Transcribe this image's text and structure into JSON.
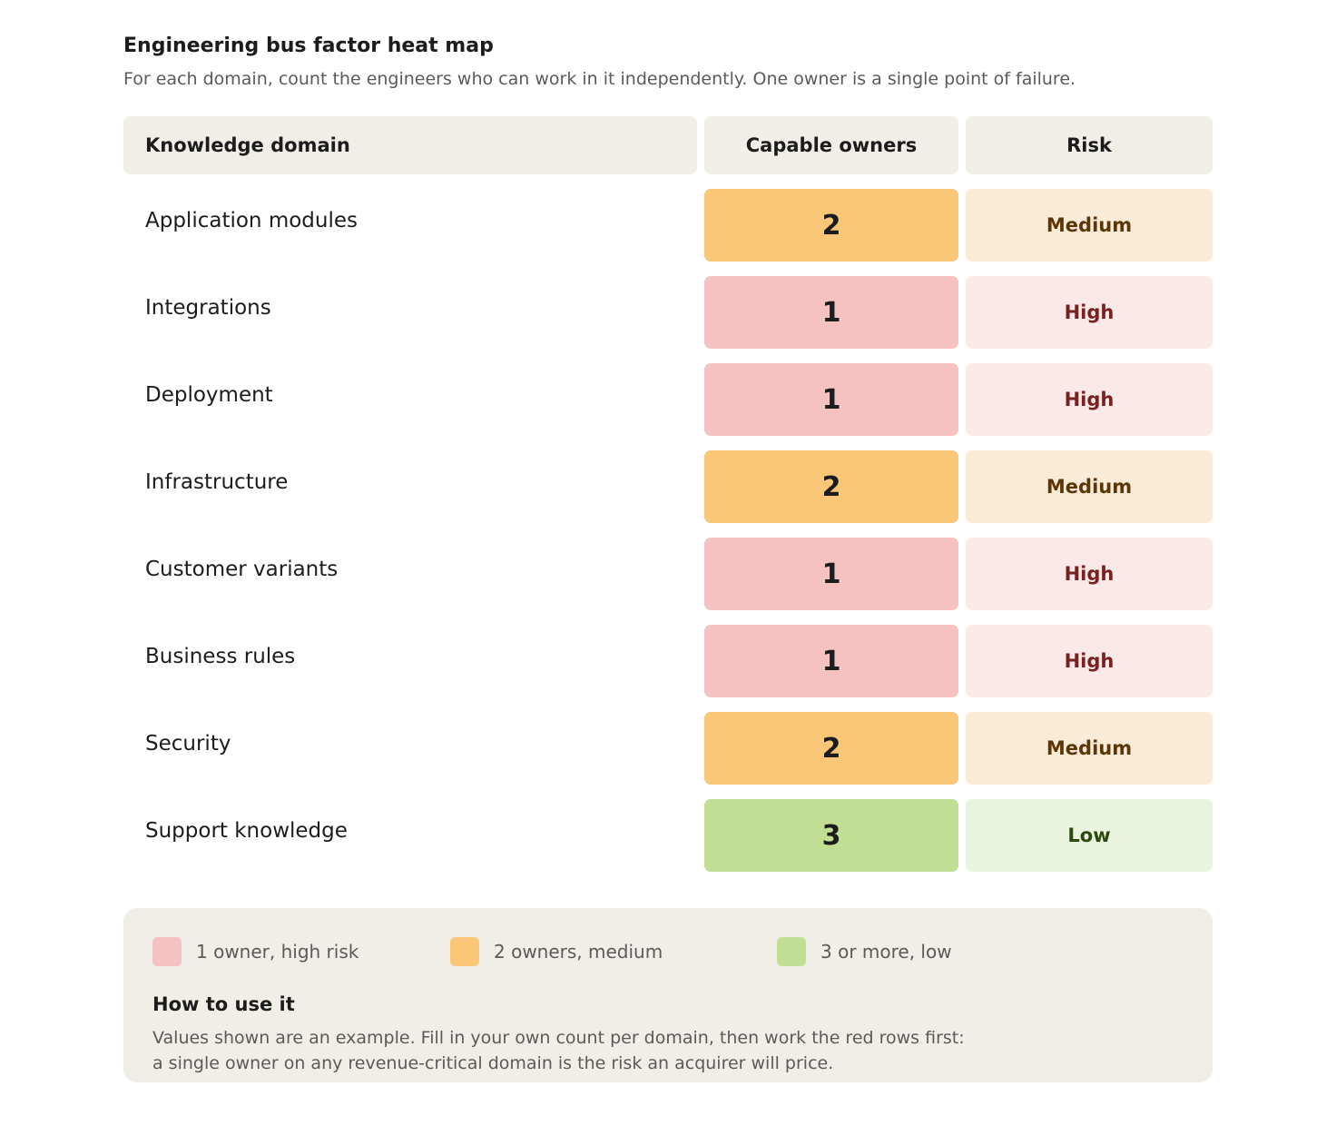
{
  "title": "Engineering bus factor heat map",
  "subtitle": "For each domain, count the engineers who can work in it independently. One owner is a single point of failure.",
  "colors": {
    "header_bg": "#f1eee8",
    "high_fill": "#f6c1c1",
    "high_light": "#fbe9e8",
    "high_text": "#7a1f1f",
    "medium_fill": "#f9c777",
    "medium_light": "#faebd7",
    "medium_text": "#5c3608",
    "low_fill": "#c1de95",
    "low_light": "#eaf3dd",
    "low_text": "#2a4a10"
  },
  "chart_data": {
    "type": "table",
    "columns": [
      "Knowledge domain",
      "Capable owners",
      "Risk"
    ],
    "rows": [
      {
        "domain": "Application modules",
        "owners": "2",
        "risk": "Medium",
        "level": "medium"
      },
      {
        "domain": "Integrations",
        "owners": "1",
        "risk": "High",
        "level": "high"
      },
      {
        "domain": "Deployment",
        "owners": "1",
        "risk": "High",
        "level": "high"
      },
      {
        "domain": "Infrastructure",
        "owners": "2",
        "risk": "Medium",
        "level": "medium"
      },
      {
        "domain": "Customer variants",
        "owners": "1",
        "risk": "High",
        "level": "high"
      },
      {
        "domain": "Business rules",
        "owners": "1",
        "risk": "High",
        "level": "high"
      },
      {
        "domain": "Security",
        "owners": "2",
        "risk": "Medium",
        "level": "medium"
      },
      {
        "domain": "Support knowledge",
        "owners": "3",
        "risk": "Low",
        "level": "low"
      }
    ]
  },
  "legend": [
    {
      "label": "1 owner, high risk",
      "level": "high"
    },
    {
      "label": "2 owners, medium",
      "level": "medium"
    },
    {
      "label": "3 or more, low",
      "level": "low"
    }
  ],
  "howto": {
    "title": "How to use it",
    "line1": "Values shown are an example. Fill in your own count per domain, then work the red rows first:",
    "line2": "a single owner on any revenue-critical domain is the risk an acquirer will price."
  }
}
